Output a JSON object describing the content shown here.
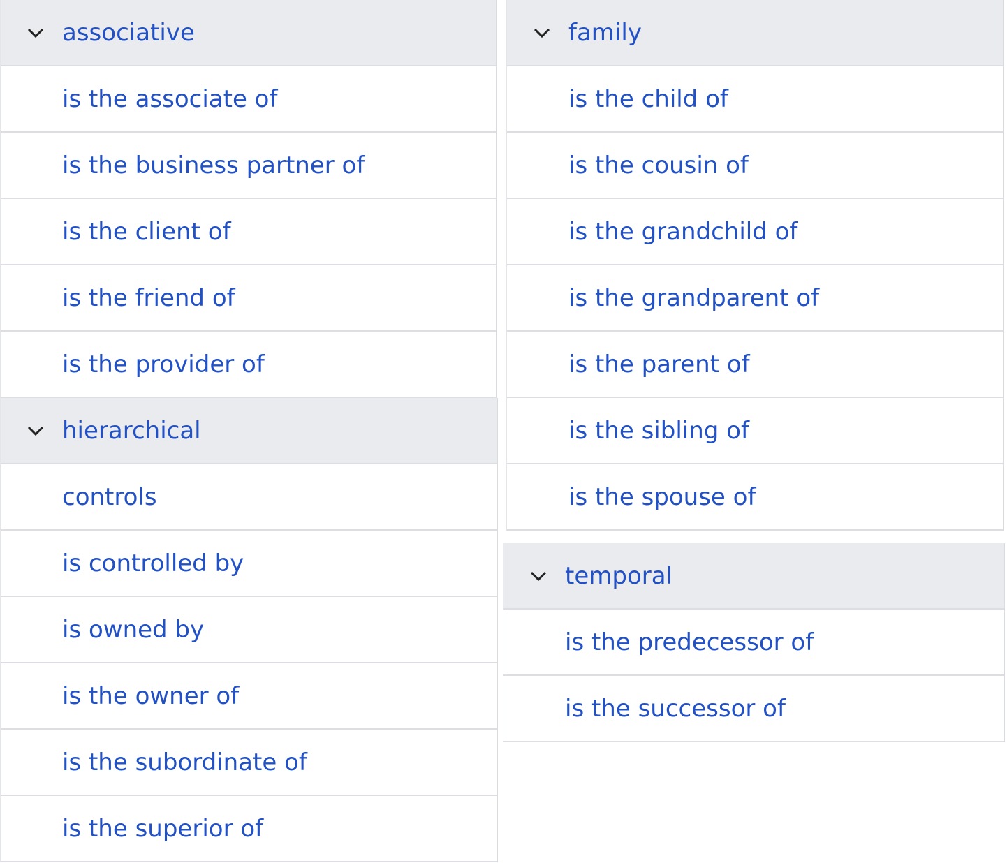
{
  "groups": [
    {
      "title": "associative",
      "items": [
        "is the associate of",
        "is the business partner of",
        "is the client of",
        "is the friend of",
        "is the provider of"
      ]
    },
    {
      "title": "hierarchical",
      "items": [
        "controls",
        "is controlled by",
        "is owned by",
        "is the owner of",
        "is the subordinate of",
        "is the superior of"
      ]
    },
    {
      "title": "family",
      "items": [
        "is the child of",
        "is the cousin of",
        "is the grandchild of",
        "is the grandparent of",
        "is the parent of",
        "is the sibling of",
        "is the spouse of"
      ]
    },
    {
      "title": "temporal",
      "items": [
        "is the predecessor of",
        "is the successor of"
      ]
    }
  ],
  "colors": {
    "link": "#2151c4",
    "header_bg": "#eaebef",
    "divider": "#dcdee3"
  }
}
